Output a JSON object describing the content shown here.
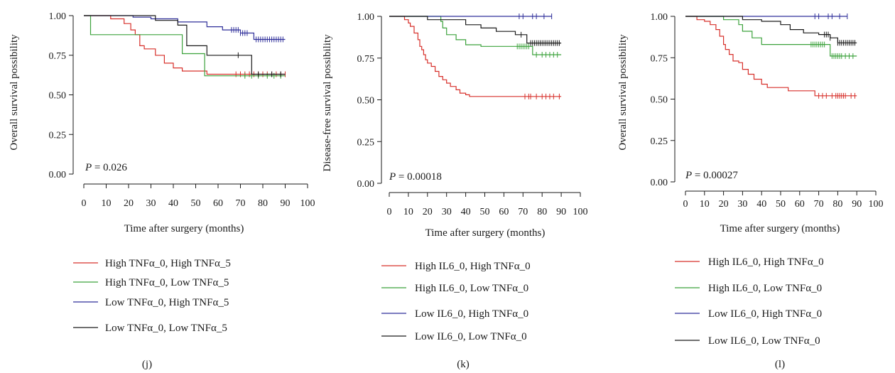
{
  "panels": [
    {
      "panel_label": "(j)",
      "xlabel": "Time after surgery (months)",
      "ylabel": "Overall survival possibility",
      "p_value": "P = 0.026",
      "legend": [
        "High TNFα_0, High TNFα_5",
        "High TNFα_0, Low TNFα_5",
        "Low TNFα_0, High TNFα_5",
        "Low TNFα_0, Low TNFα_5"
      ]
    },
    {
      "panel_label": "(k)",
      "xlabel": "Time after surgery (months)",
      "ylabel": "Disease-free survival possibility",
      "p_value": "P = 0.00018",
      "legend": [
        "High IL6_0, High TNFα_0",
        "High IL6_0, Low TNFα_0",
        "Low IL6_0, High TNFα_0",
        "Low IL6_0, Low TNFα_0"
      ]
    },
    {
      "panel_label": "(l)",
      "xlabel": "Time after surgery (months)",
      "ylabel": "Overall survival possibility",
      "p_value": "P = 0.00027",
      "legend": [
        "High IL6_0, High TNFα_0",
        "High IL6_0, Low TNFα_0",
        "Low IL6_0, High TNFα_0",
        "Low IL6_0, Low TNFα_0"
      ]
    }
  ],
  "chart_data": [
    {
      "type": "line",
      "step": true,
      "title": "",
      "xlabel": "Time after surgery (months)",
      "ylabel": "Overall survival possibility",
      "xlim": [
        0,
        100
      ],
      "ylim": [
        0,
        1
      ],
      "xticks": [
        0,
        10,
        20,
        30,
        40,
        50,
        60,
        70,
        80,
        90,
        100
      ],
      "yticks": [
        "0.00",
        "0.25",
        "0.50",
        "0.75",
        "1.00"
      ],
      "grid": false,
      "annotation": "P = 0.026",
      "series": [
        {
          "name": "High TNFα_0, High TNFα_5",
          "color": "#d7302b",
          "x": [
            0,
            12,
            18,
            21,
            23,
            25,
            27,
            32,
            36,
            40,
            44,
            55,
            90
          ],
          "y": [
            1.0,
            0.98,
            0.95,
            0.91,
            0.88,
            0.81,
            0.79,
            0.75,
            0.7,
            0.67,
            0.65,
            0.63,
            0.63
          ],
          "censor_x": [
            68,
            70,
            72,
            74,
            76,
            78,
            80,
            82,
            84,
            86,
            88,
            90
          ]
        },
        {
          "name": "High TNFα_0, Low TNFα_5",
          "color": "#3ca23c",
          "x": [
            0,
            3,
            9,
            42,
            44,
            54,
            90
          ],
          "y": [
            1.0,
            0.88,
            0.88,
            0.88,
            0.76,
            0.62,
            0.62
          ],
          "censor_x": [
            72,
            75,
            78,
            82,
            85,
            88
          ]
        },
        {
          "name": "Low TNFα_0, High TNFα_5",
          "color": "#2f2f9a",
          "x": [
            0,
            22,
            30,
            42,
            55,
            62,
            70,
            76,
            90
          ],
          "y": [
            1.0,
            0.99,
            0.98,
            0.96,
            0.93,
            0.91,
            0.89,
            0.85,
            0.85
          ],
          "censor_x": [
            66,
            67,
            68,
            69,
            70,
            71,
            72,
            73,
            77,
            78,
            79,
            80,
            81,
            82,
            83,
            84,
            85,
            86,
            87,
            88,
            89
          ]
        },
        {
          "name": "Low TNFα_0, Low TNFα_5",
          "color": "#1a1a1a",
          "x": [
            0,
            21,
            32,
            42,
            46,
            55,
            75,
            90
          ],
          "y": [
            1.0,
            1.0,
            0.97,
            0.94,
            0.81,
            0.75,
            0.63,
            0.63
          ],
          "censor_x": [
            69,
            78,
            84,
            88
          ]
        }
      ]
    },
    {
      "type": "line",
      "step": true,
      "title": "",
      "xlabel": "Time after surgery (months)",
      "ylabel": "Disease-free survival possibility",
      "xlim": [
        0,
        100
      ],
      "ylim": [
        0,
        1
      ],
      "xticks": [
        0,
        10,
        20,
        30,
        40,
        50,
        60,
        70,
        80,
        90,
        100
      ],
      "yticks": [
        "0.00",
        "0.25",
        "0.50",
        "0.75",
        "1.00"
      ],
      "grid": false,
      "annotation": "P = 0.00018",
      "series": [
        {
          "name": "High IL6_0, High TNFα_0",
          "color": "#d7302b",
          "x": [
            0,
            8,
            10,
            11,
            13,
            15,
            16,
            17,
            18,
            19,
            20,
            22,
            24,
            26,
            28,
            30,
            32,
            35,
            37,
            40,
            42,
            90
          ],
          "y": [
            1.0,
            0.98,
            0.96,
            0.94,
            0.9,
            0.86,
            0.82,
            0.8,
            0.77,
            0.74,
            0.72,
            0.7,
            0.67,
            0.64,
            0.62,
            0.6,
            0.58,
            0.56,
            0.54,
            0.53,
            0.52,
            0.52
          ],
          "censor_x": [
            71,
            73,
            74,
            77,
            80,
            82,
            84,
            86,
            89
          ]
        },
        {
          "name": "High IL6_0, Low TNFα_0",
          "color": "#3ca23c",
          "x": [
            0,
            27,
            28,
            30,
            35,
            40,
            48,
            73,
            75,
            90
          ],
          "y": [
            1.0,
            0.97,
            0.93,
            0.89,
            0.86,
            0.83,
            0.82,
            0.82,
            0.77,
            0.77
          ],
          "censor_x": [
            67,
            68,
            69,
            70,
            71,
            72,
            73,
            77,
            80,
            82,
            84,
            86,
            88
          ]
        },
        {
          "name": "Low IL6_0, High TNFα_0",
          "color": "#2f2f9a",
          "x": [
            0,
            85
          ],
          "y": [
            1.0,
            1.0
          ],
          "censor_x": [
            68,
            70,
            75,
            77,
            81,
            85
          ]
        },
        {
          "name": "Low IL6_0, Low TNFα_0",
          "color": "#1a1a1a",
          "x": [
            0,
            20,
            40,
            48,
            56,
            66,
            72,
            90
          ],
          "y": [
            1.0,
            0.98,
            0.95,
            0.93,
            0.91,
            0.89,
            0.84,
            0.84
          ],
          "censor_x": [
            69,
            74,
            75,
            76,
            77,
            78,
            79,
            80,
            81,
            82,
            83,
            84,
            85,
            86,
            87,
            88,
            89
          ]
        }
      ]
    },
    {
      "type": "line",
      "step": true,
      "title": "",
      "xlabel": "Time after surgery (months)",
      "ylabel": "Overall survival possibility",
      "xlim": [
        0,
        100
      ],
      "ylim": [
        0,
        1
      ],
      "xticks": [
        0,
        10,
        20,
        30,
        40,
        50,
        60,
        70,
        80,
        90,
        100
      ],
      "yticks": [
        "0.00",
        "0.25",
        "0.50",
        "0.75",
        "1.00"
      ],
      "grid": false,
      "annotation": "P = 0.00027",
      "series": [
        {
          "name": "High IL6_0, High TNFα_0",
          "color": "#d7302b",
          "x": [
            0,
            6,
            10,
            13,
            16,
            18,
            20,
            21,
            23,
            25,
            28,
            30,
            33,
            36,
            40,
            43,
            54,
            68,
            90
          ],
          "y": [
            1.0,
            0.98,
            0.97,
            0.95,
            0.92,
            0.88,
            0.83,
            0.8,
            0.77,
            0.73,
            0.72,
            0.68,
            0.65,
            0.62,
            0.59,
            0.57,
            0.55,
            0.52,
            0.52
          ],
          "censor_x": [
            70,
            72,
            74,
            77,
            79,
            80,
            81,
            82,
            83,
            84,
            87,
            89
          ]
        },
        {
          "name": "High IL6_0, Low TNFα_0",
          "color": "#3ca23c",
          "x": [
            0,
            20,
            28,
            30,
            35,
            40,
            74,
            76,
            90
          ],
          "y": [
            1.0,
            0.98,
            0.95,
            0.91,
            0.87,
            0.83,
            0.83,
            0.76,
            0.76
          ],
          "censor_x": [
            66,
            67,
            68,
            69,
            70,
            71,
            72,
            73,
            77,
            78,
            79,
            80,
            81,
            82,
            84,
            86,
            88
          ]
        },
        {
          "name": "Low IL6_0, High TNFα_0",
          "color": "#2f2f9a",
          "x": [
            0,
            85
          ],
          "y": [
            1.0,
            1.0
          ],
          "censor_x": [
            68,
            70,
            75,
            77,
            81,
            85
          ]
        },
        {
          "name": "Low IL6_0, Low TNFα_0",
          "color": "#1a1a1a",
          "x": [
            0,
            30,
            40,
            50,
            55,
            62,
            70,
            76,
            80,
            90
          ],
          "y": [
            1.0,
            0.98,
            0.97,
            0.95,
            0.92,
            0.9,
            0.89,
            0.87,
            0.84,
            0.84
          ],
          "censor_x": [
            73,
            74,
            75,
            76,
            80,
            81,
            82,
            83,
            84,
            85,
            86,
            87,
            88,
            89
          ]
        }
      ]
    }
  ]
}
